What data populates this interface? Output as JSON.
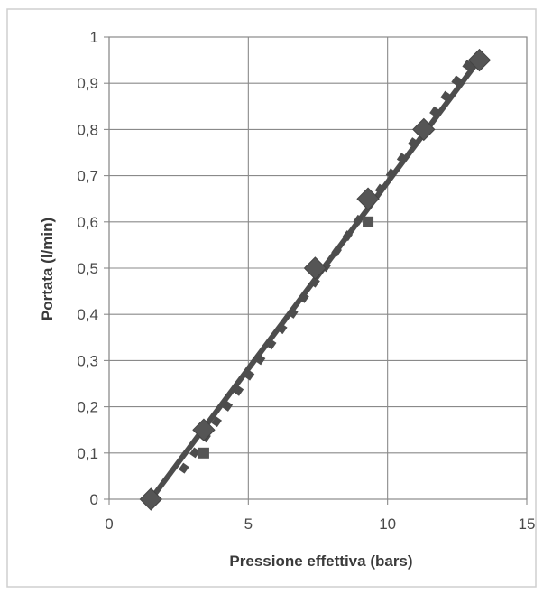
{
  "chart_data": {
    "type": "scatter",
    "title": "",
    "xlabel": "Pressione effettiva (bars)",
    "ylabel": "Portata (l/min)",
    "xlim": [
      0,
      15
    ],
    "ylim": [
      0,
      1
    ],
    "xticks": [
      "0",
      "5",
      "10",
      "15"
    ],
    "yticks": [
      "0",
      "0,1",
      "0,2",
      "0,3",
      "0,4",
      "0,5",
      "0,6",
      "0,7",
      "0,8",
      "0,9",
      "1"
    ],
    "grid": true,
    "legend": "none",
    "series": [
      {
        "marker": "diamond",
        "line": "solid linear fit",
        "color": "#555555",
        "points": [
          {
            "x": 1.5,
            "y": 0.0
          },
          {
            "x": 3.4,
            "y": 0.15
          },
          {
            "x": 7.4,
            "y": 0.5
          },
          {
            "x": 9.3,
            "y": 0.65
          },
          {
            "x": 11.3,
            "y": 0.8
          },
          {
            "x": 13.3,
            "y": 0.95
          }
        ]
      },
      {
        "marker": "square",
        "line": "dotted linear fit",
        "color": "#555555",
        "points": [
          {
            "x": 3.4,
            "y": 0.1
          },
          {
            "x": 9.3,
            "y": 0.6
          }
        ]
      }
    ],
    "fit_lines": [
      {
        "style": "solid",
        "x": [
          1.5,
          13.4
        ],
        "y": [
          0.0,
          0.96
        ]
      },
      {
        "style": "dotted",
        "x": [
          2.6,
          13.0
        ],
        "y": [
          0.06,
          0.95
        ]
      }
    ]
  }
}
